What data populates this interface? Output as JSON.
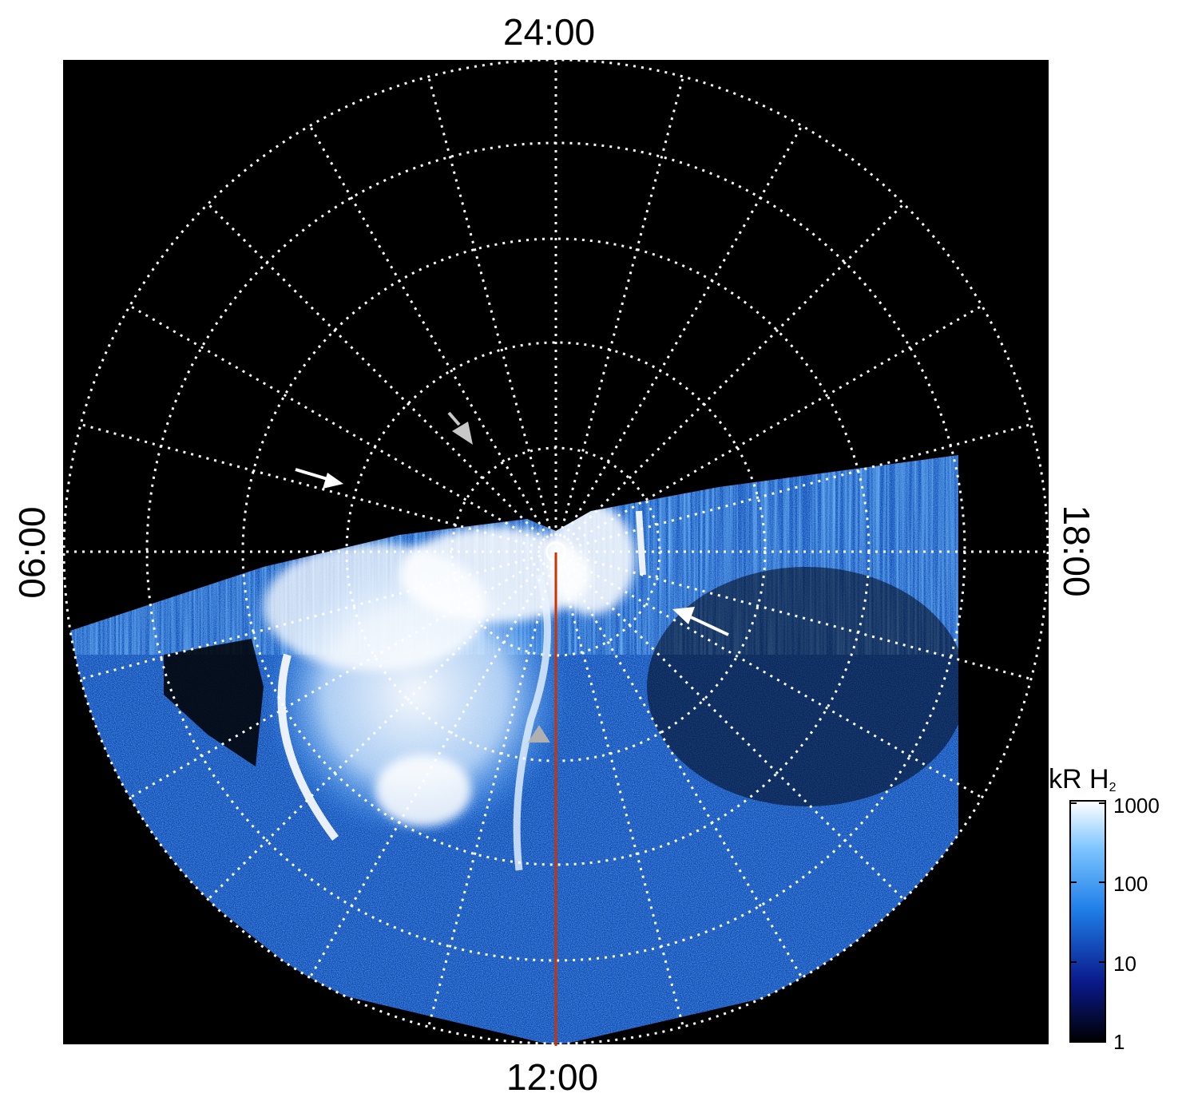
{
  "axes": {
    "top_label": "24:00",
    "bottom_label": "12:00",
    "left_label": "06:00",
    "right_label": "18:00"
  },
  "colorbar": {
    "title_main": "kR H",
    "title_sub": "2",
    "ticks": [
      "1000",
      "100",
      "10",
      "1"
    ],
    "scale": "log",
    "range": [
      1,
      1000
    ],
    "colors": [
      "#000000",
      "#0a1a8c",
      "#1f7fe8",
      "#7cc4ff",
      "#ffffff"
    ]
  },
  "colors": {
    "background": "#000000",
    "grid": "#ffffff",
    "meridian_line": "#cc3300",
    "arrow_white": "#ffffff",
    "arrow_gray": "#c8c8c8"
  }
}
